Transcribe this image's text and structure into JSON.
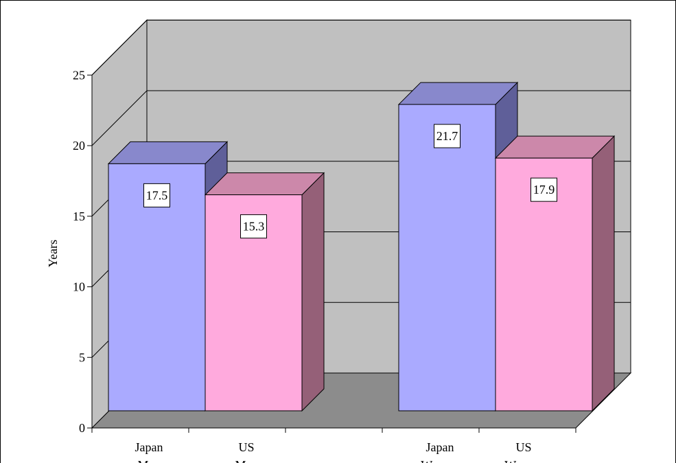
{
  "chart_data": {
    "type": "bar",
    "style": "3d-clustered-column",
    "ylabel": "Years",
    "ylim": [
      0,
      25
    ],
    "yticks": [
      "0",
      "5",
      "10",
      "15",
      "20",
      "25"
    ],
    "grid": true,
    "categories": [
      {
        "line1": "Japan",
        "line2": "Men"
      },
      {
        "line1": "US",
        "line2": "Men"
      },
      {
        "line1": "Japan",
        "line2": "Women"
      },
      {
        "line1": "US",
        "line2": "Women"
      }
    ],
    "values": [
      17.5,
      15.3,
      21.7,
      17.9
    ],
    "value_labels": [
      "17.5",
      "15.3",
      "21.7",
      "17.9"
    ],
    "colors": {
      "japan_front": "#aaaaff",
      "japan_top": "#8888cc",
      "japan_side": "#5f5f99",
      "us_front": "#ffaadd",
      "us_top": "#cc88aa",
      "us_side": "#956078",
      "wall": "#c0c0c0",
      "floor": "#8c8c8c"
    }
  }
}
